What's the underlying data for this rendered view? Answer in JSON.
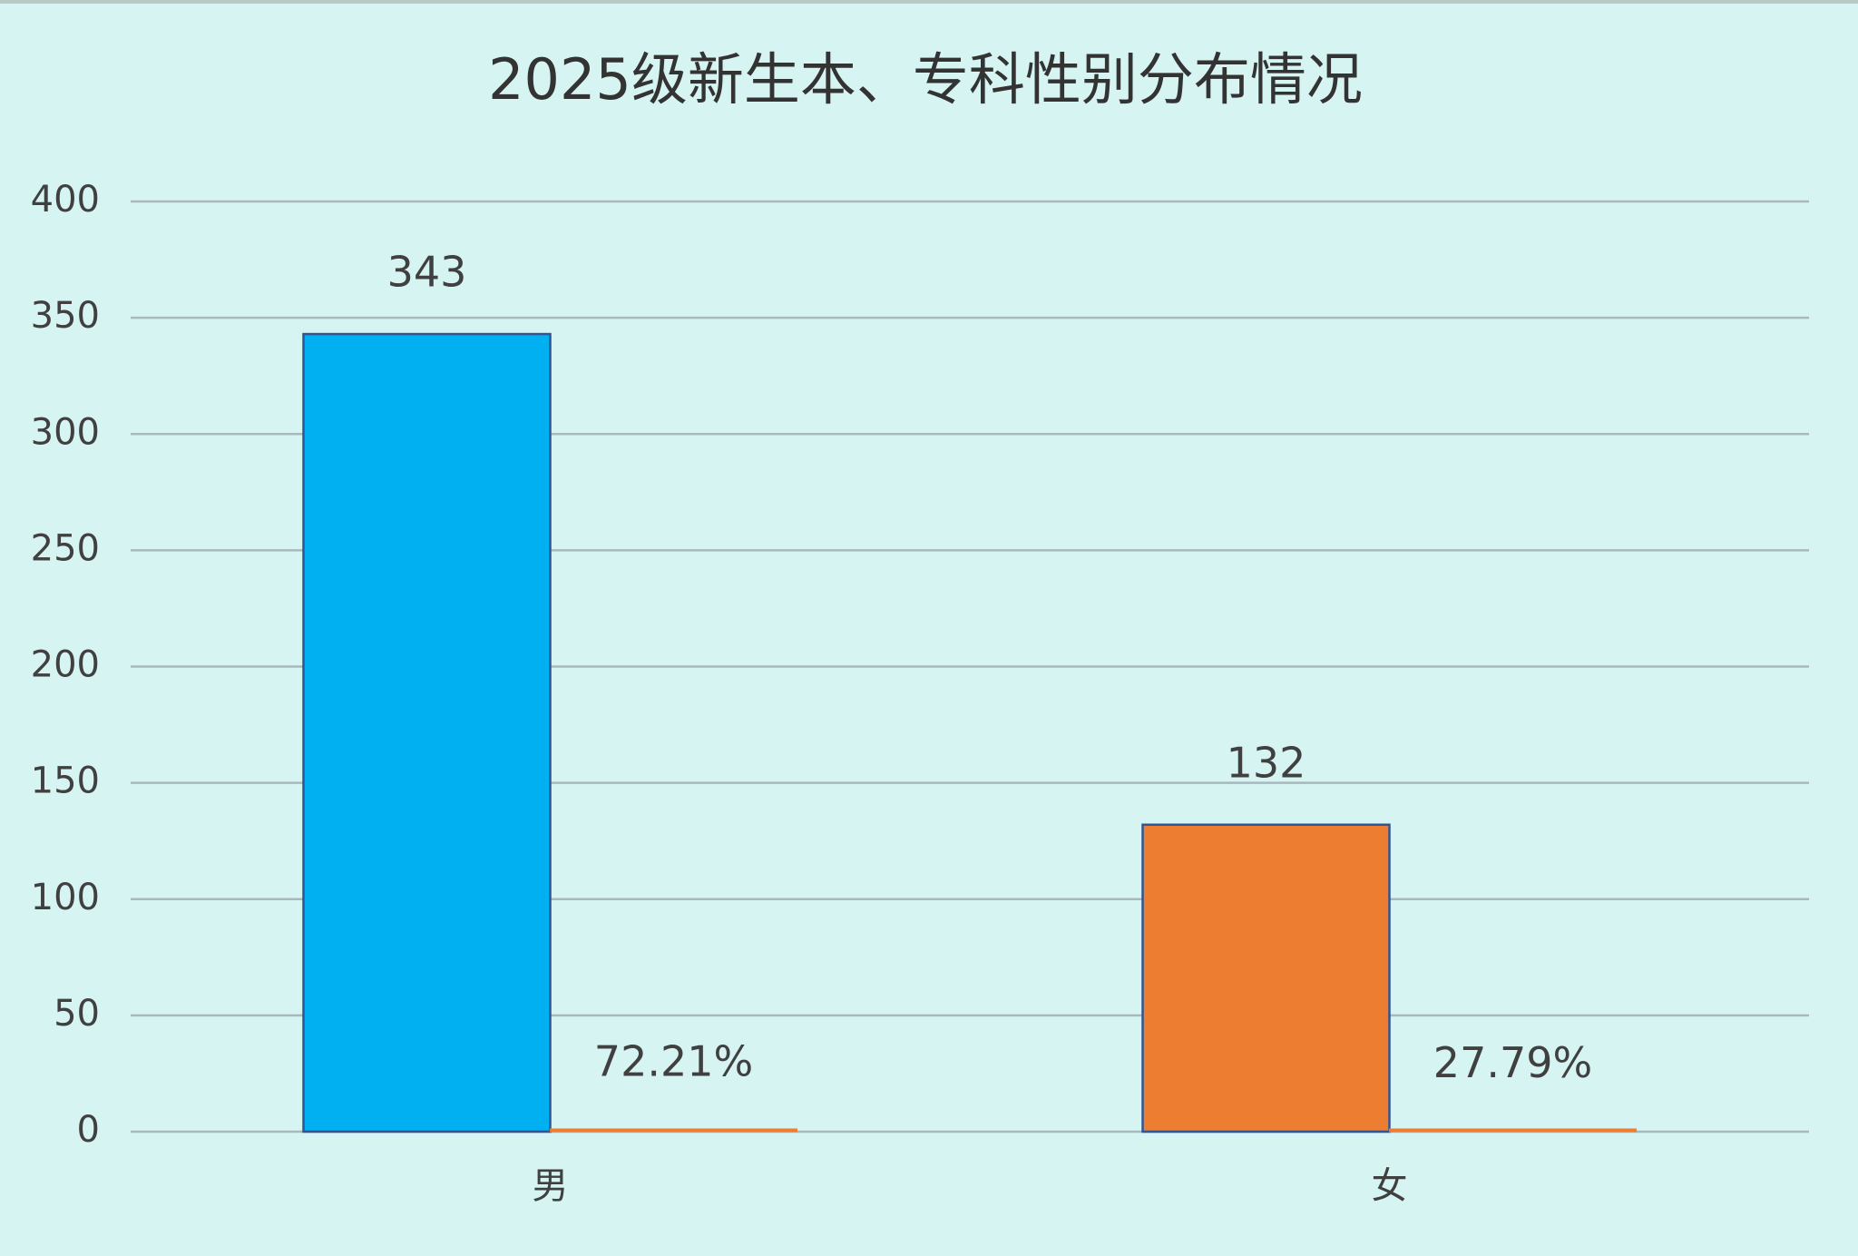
{
  "chart_data": {
    "type": "bar",
    "title": "2025级新生本、专科性别分布情况",
    "categories": [
      "男",
      "女"
    ],
    "series": [
      {
        "colors": [
          "#00b0f0",
          "#ed7d31"
        ],
        "values": [
          343,
          132
        ]
      },
      {
        "color": "#ed7d31",
        "values": [
          0.7221,
          0.2779
        ],
        "value_labels": [
          "72.21%",
          "27.79%"
        ]
      }
    ],
    "ylim": [
      0,
      400
    ],
    "yticks": [
      0,
      50,
      100,
      150,
      200,
      250,
      300,
      350,
      400
    ],
    "grid": true
  }
}
